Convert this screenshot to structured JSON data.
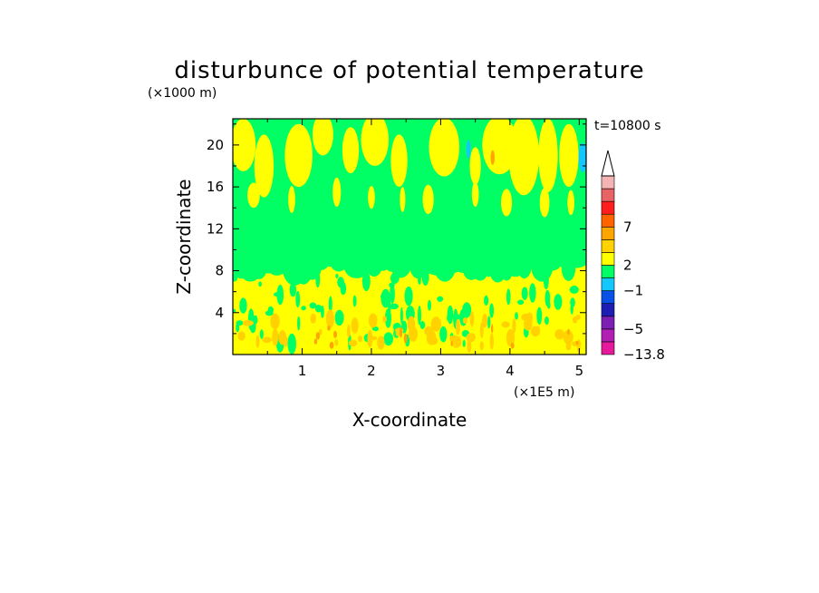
{
  "chart_data": {
    "type": "heatmap",
    "title": "disturbunce of potential temperature",
    "ylabel": "Z-coordinate",
    "xlabel": "X-coordinate",
    "y_unit": "(×1000 m)",
    "x_unit": "(×1E5 m)",
    "time_label": "t=10800 s",
    "xlim": [
      0,
      5.1
    ],
    "ylim": [
      0,
      22.5
    ],
    "x_ticks": [
      "1",
      "2",
      "3",
      "4",
      "5"
    ],
    "y_ticks": [
      "4",
      "8",
      "12",
      "16",
      "20"
    ],
    "x_tick_values": [
      1,
      2,
      3,
      4,
      5
    ],
    "y_tick_values": [
      4,
      8,
      12,
      16,
      20
    ],
    "colorbar": {
      "min": -13.8,
      "labels": [
        {
          "text": "7",
          "value": 7
        },
        {
          "text": "2",
          "value": 2
        },
        {
          "text": "−1",
          "value": -1
        },
        {
          "text": "−5",
          "value": -5
        },
        {
          "text": "−13.8",
          "value": -13.8
        }
      ],
      "colors": [
        "#e6199a",
        "#b21eb4",
        "#7d1eb4",
        "#1e1eb4",
        "#0a50e6",
        "#14c8ff",
        "#00ff64",
        "#ffff00",
        "#ffd200",
        "#ffa500",
        "#ff6400",
        "#ff1e1e",
        "#e66464",
        "#f5b4b4"
      ],
      "extend": "max"
    },
    "levels": {
      "background": "#00ff64",
      "warm": "#ffff00",
      "warmer": "#ffd200",
      "hot": "#ffa500",
      "cool": "#14c8ff"
    }
  }
}
